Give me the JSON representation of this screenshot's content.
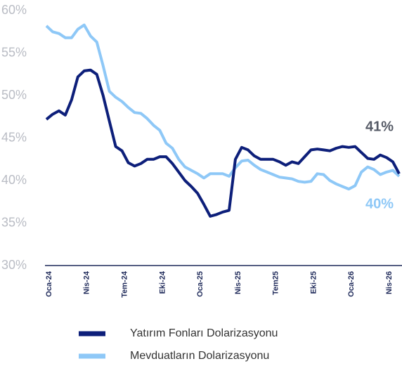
{
  "chart_data": {
    "type": "line",
    "categories": [
      "Oca-24",
      null,
      null,
      null,
      null,
      null,
      "Nis-24",
      null,
      null,
      null,
      null,
      null,
      "Tem-24",
      null,
      null,
      null,
      null,
      null,
      "Eki-24",
      null,
      null,
      null,
      null,
      null,
      "Oca-25",
      null,
      null,
      null,
      null,
      null,
      "Nis-25",
      null,
      null,
      null,
      null,
      null,
      "Tem25",
      null,
      null,
      null,
      null,
      null,
      "Eki-25",
      null,
      null,
      null,
      null,
      null,
      "Oca-26",
      null,
      null,
      null,
      null,
      null,
      "Nis-26",
      null,
      "."
    ],
    "series": [
      {
        "name": "Yatırım Fonları Dolarizasyonu",
        "color": "#0d1f7a",
        "values": [
          47.2,
          47.8,
          48.2,
          47.7,
          49.5,
          52.2,
          52.9,
          53.0,
          52.5,
          50,
          47,
          44,
          43.5,
          42.1,
          41.7,
          42.0,
          42.5,
          42.5,
          42.8,
          42.8,
          42.0,
          41.0,
          40.0,
          39.3,
          38.5,
          37.2,
          35.8,
          36.0,
          36.3,
          36.5,
          42.5,
          43.9,
          43.6,
          42.9,
          42.5,
          42.5,
          42.5,
          42.2,
          41.8,
          42.2,
          42.0,
          42.8,
          43.6,
          43.7,
          43.6,
          43.5,
          43.8,
          44.0,
          43.9,
          44.0,
          43.3,
          42.6,
          42.5,
          43.0,
          42.7,
          42.2,
          40.8
        ]
      },
      {
        "name": "Mevduatların Dolarizasyonu",
        "color": "#8ec8f7",
        "values": [
          58.2,
          57.5,
          57.3,
          56.8,
          56.8,
          57.8,
          58.3,
          57.0,
          56.3,
          53.5,
          50.5,
          49.8,
          49.3,
          48.6,
          48.0,
          47.9,
          47.3,
          46.5,
          45.9,
          44.4,
          43.8,
          42.5,
          41.6,
          41.2,
          40.8,
          40.3,
          40.8,
          40.8,
          40.8,
          40.5,
          41.5,
          42.3,
          42.4,
          41.8,
          41.3,
          41.0,
          40.7,
          40.4,
          40.3,
          40.2,
          39.9,
          39.8,
          39.9,
          40.8,
          40.7,
          40.0,
          39.6,
          39.3,
          39.0,
          39.4,
          41.0,
          41.6,
          41.3,
          40.7,
          41.0,
          41.2,
          40.5
        ]
      }
    ],
    "ylim": [
      30,
      60
    ],
    "yticks": [
      {
        "value": 30,
        "label": "30%"
      },
      {
        "value": 35,
        "label": "35%"
      },
      {
        "value": 40,
        "label": "40%"
      },
      {
        "value": 45,
        "label": "45%"
      },
      {
        "value": 50,
        "label": "50%"
      },
      {
        "value": 55,
        "label": "55%"
      },
      {
        "value": 60,
        "label": "60%"
      }
    ],
    "annotations": [
      {
        "text": "41%",
        "color": "#555a66"
      },
      {
        "text": "40%",
        "color": "#8ec8f7"
      }
    ],
    "grid": false
  }
}
